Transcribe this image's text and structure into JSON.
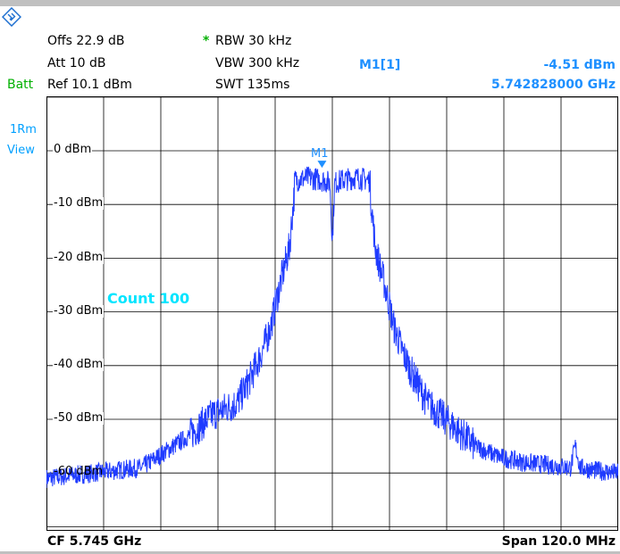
{
  "header": {
    "offset": "Offs 22.9 dB",
    "attenuation": "Att  10 dB",
    "batt_label": "Batt",
    "reference": "Ref  10.1 dBm",
    "rbw_star": "*",
    "rbw": "RBW 30 kHz",
    "vbw": "VBW 300 kHz",
    "swt": "SWT 135ms",
    "marker_name": "M1[1]",
    "marker_level": "-4.51 dBm",
    "marker_freq": "5.742828000 GHz"
  },
  "side": {
    "trace_label": "1Rm",
    "view_label": "View"
  },
  "plot": {
    "y_labels": [
      "0 dBm",
      "-10 dBm",
      "-20 dBm",
      "-30 dBm",
      "-40 dBm",
      "-50 dBm",
      "-60 dBm"
    ],
    "count_label": "Count 100",
    "marker_label": "M1"
  },
  "footer": {
    "center_freq": "CF 5.745 GHz",
    "span": "Span 120.0 MHz"
  },
  "chart_data": {
    "type": "line",
    "center_frequency_ghz": 5.745,
    "span_mhz": 120.0,
    "x_range_mhz": [
      -60,
      60
    ],
    "y_range_dbm": [
      -70,
      10
    ],
    "grid": true,
    "series": [
      {
        "x": [
          -60,
          -50,
          -40,
          -35,
          -30,
          -25,
          -20,
          -17,
          -15,
          -13,
          -11,
          -9,
          -8,
          -7.9,
          -5,
          -2,
          -0.5,
          0,
          0.5,
          2,
          5,
          7.9,
          8,
          9,
          11,
          13,
          15,
          17,
          20,
          25,
          30,
          35,
          40,
          45,
          50,
          51,
          52,
          55,
          60
        ],
        "y": [
          -61,
          -60,
          -59,
          -56,
          -53,
          -49,
          -47,
          -42,
          -38,
          -33,
          -25,
          -18,
          -8,
          -5.5,
          -5,
          -5.5,
          -6,
          -17,
          -6,
          -5.5,
          -5,
          -5.5,
          -8,
          -18,
          -25,
          -33,
          -38,
          -42,
          -47,
          -51,
          -55,
          -57,
          -58,
          -58.5,
          -59,
          -55,
          -59,
          -59.5,
          -60
        ]
      }
    ],
    "marker": {
      "name": "M1",
      "frequency_ghz": 5.742828,
      "level_dbm": -4.51
    }
  }
}
